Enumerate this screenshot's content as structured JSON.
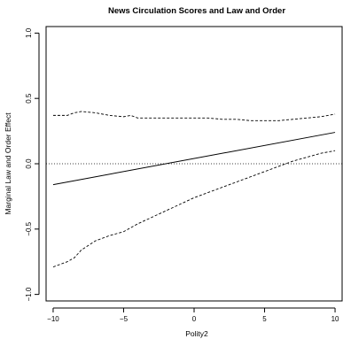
{
  "chart_data": {
    "type": "line",
    "title": "News Circulation Scores and Law and Order",
    "xlabel": "Polity2",
    "ylabel": "Marginal Law and Order Effect",
    "xlim": [
      -10.5,
      10.5
    ],
    "ylim": [
      -1.05,
      1.05
    ],
    "xticks": [
      -10,
      -5,
      0,
      5,
      10
    ],
    "yticks": [
      -1.0,
      -0.5,
      0.0,
      0.5,
      1.0
    ],
    "xtick_labels": [
      "−10",
      "−5",
      "0",
      "5",
      "10"
    ],
    "ytick_labels": [
      "−1.0",
      "−0.5",
      "0.0",
      "0.5",
      "1.0"
    ],
    "grid": false,
    "reference_line": {
      "y": 0,
      "style": "dotted"
    },
    "series": [
      {
        "role": "estimate",
        "style": "solid",
        "x": [
          -10,
          10
        ],
        "y": [
          -0.16,
          0.24
        ]
      },
      {
        "role": "upper-bound",
        "style": "dashed",
        "x": [
          -10,
          -9,
          -8.5,
          -8,
          -7,
          -6,
          -5,
          -4.5,
          -4,
          -3,
          -2,
          -1,
          0,
          1,
          2,
          3,
          4,
          5,
          6,
          7,
          8,
          9,
          10
        ],
        "y": [
          0.37,
          0.37,
          0.39,
          0.4,
          0.39,
          0.37,
          0.36,
          0.37,
          0.35,
          0.35,
          0.35,
          0.35,
          0.35,
          0.35,
          0.34,
          0.34,
          0.33,
          0.33,
          0.33,
          0.34,
          0.35,
          0.36,
          0.38
        ]
      },
      {
        "role": "lower-bound",
        "style": "dashed",
        "x": [
          -10,
          -9,
          -8.5,
          -8,
          -7,
          -6,
          -5,
          -4,
          -3,
          -2,
          -1,
          0,
          1,
          2,
          3,
          4,
          5,
          6,
          7,
          8,
          9,
          10
        ],
        "y": [
          -0.79,
          -0.75,
          -0.72,
          -0.66,
          -0.59,
          -0.55,
          -0.52,
          -0.46,
          -0.41,
          -0.36,
          -0.31,
          -0.26,
          -0.22,
          -0.18,
          -0.14,
          -0.1,
          -0.06,
          -0.02,
          0.02,
          0.05,
          0.08,
          0.1
        ]
      }
    ]
  }
}
